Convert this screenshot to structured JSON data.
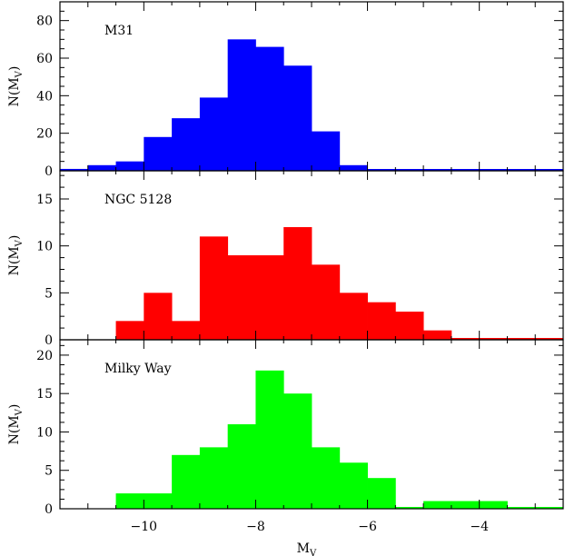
{
  "chart_data": [
    {
      "type": "bar",
      "panel_label": "M31",
      "color": "#0000ff",
      "ylabel": "N(M",
      "ylabel_sub": "V",
      "ylabel_close": ")",
      "xlim": [
        -11.5,
        -2.5
      ],
      "ylim": [
        0,
        90
      ],
      "yticks": [
        0,
        20,
        40,
        60,
        80
      ],
      "bin_width": 0.5,
      "bins": [
        {
          "x0": -11.5,
          "x1": -11.0,
          "value": 1
        },
        {
          "x0": -11.0,
          "x1": -10.5,
          "value": 3
        },
        {
          "x0": -10.5,
          "x1": -10.0,
          "value": 5
        },
        {
          "x0": -10.0,
          "x1": -9.5,
          "value": 18
        },
        {
          "x0": -9.5,
          "x1": -9.0,
          "value": 28
        },
        {
          "x0": -9.0,
          "x1": -8.5,
          "value": 39
        },
        {
          "x0": -8.5,
          "x1": -8.0,
          "value": 70
        },
        {
          "x0": -8.0,
          "x1": -7.5,
          "value": 66
        },
        {
          "x0": -7.5,
          "x1": -7.0,
          "value": 56
        },
        {
          "x0": -7.0,
          "x1": -6.5,
          "value": 21
        },
        {
          "x0": -6.5,
          "x1": -6.0,
          "value": 3
        },
        {
          "x0": -6.0,
          "x1": -5.5,
          "value": 0
        },
        {
          "x0": -5.5,
          "x1": -5.0,
          "value": 0
        },
        {
          "x0": -5.0,
          "x1": -4.5,
          "value": 0
        },
        {
          "x0": -4.5,
          "x1": -4.0,
          "value": 0
        },
        {
          "x0": -4.0,
          "x1": -3.5,
          "value": 0
        },
        {
          "x0": -3.5,
          "x1": -3.0,
          "value": 0
        },
        {
          "x0": -3.0,
          "x1": -2.5,
          "value": 0
        }
      ]
    },
    {
      "type": "bar",
      "panel_label": "NGC 5128",
      "color": "#ff0000",
      "ylabel": "N(M",
      "ylabel_sub": "V",
      "ylabel_close": ")",
      "xlim": [
        -11.5,
        -2.5
      ],
      "ylim": [
        0,
        18
      ],
      "yticks": [
        0,
        5,
        10,
        15
      ],
      "bin_width": 0.5,
      "bins": [
        {
          "x0": -10.5,
          "x1": -10.0,
          "value": 2
        },
        {
          "x0": -10.0,
          "x1": -9.5,
          "value": 5
        },
        {
          "x0": -9.5,
          "x1": -9.0,
          "value": 2
        },
        {
          "x0": -9.0,
          "x1": -8.5,
          "value": 11
        },
        {
          "x0": -8.5,
          "x1": -8.0,
          "value": 9
        },
        {
          "x0": -8.0,
          "x1": -7.5,
          "value": 9
        },
        {
          "x0": -7.5,
          "x1": -7.0,
          "value": 12
        },
        {
          "x0": -7.0,
          "x1": -6.5,
          "value": 8
        },
        {
          "x0": -6.5,
          "x1": -6.0,
          "value": 5
        },
        {
          "x0": -6.0,
          "x1": -5.5,
          "value": 4
        },
        {
          "x0": -5.5,
          "x1": -5.0,
          "value": 3
        },
        {
          "x0": -5.0,
          "x1": -4.5,
          "value": 1
        },
        {
          "x0": -4.5,
          "x1": -4.0,
          "value": 0
        },
        {
          "x0": -4.0,
          "x1": -3.5,
          "value": 0
        },
        {
          "x0": -3.5,
          "x1": -3.0,
          "value": 0
        },
        {
          "x0": -3.0,
          "x1": -2.5,
          "value": 0
        }
      ]
    },
    {
      "type": "bar",
      "panel_label": "Milky Way",
      "color": "#00ff00",
      "ylabel": "N(M",
      "ylabel_sub": "V",
      "ylabel_close": ")",
      "xlim": [
        -11.5,
        -2.5
      ],
      "ylim": [
        0,
        22
      ],
      "yticks": [
        0,
        5,
        10,
        15,
        20
      ],
      "bin_width": 0.5,
      "bins": [
        {
          "x0": -10.5,
          "x1": -10.0,
          "value": 2
        },
        {
          "x0": -10.0,
          "x1": -9.5,
          "value": 2
        },
        {
          "x0": -9.5,
          "x1": -9.0,
          "value": 7
        },
        {
          "x0": -9.0,
          "x1": -8.5,
          "value": 8
        },
        {
          "x0": -8.5,
          "x1": -8.0,
          "value": 11
        },
        {
          "x0": -8.0,
          "x1": -7.5,
          "value": 18
        },
        {
          "x0": -7.5,
          "x1": -7.0,
          "value": 15
        },
        {
          "x0": -7.0,
          "x1": -6.5,
          "value": 8
        },
        {
          "x0": -6.5,
          "x1": -6.0,
          "value": 6
        },
        {
          "x0": -6.0,
          "x1": -5.5,
          "value": 4
        },
        {
          "x0": -5.5,
          "x1": -5.0,
          "value": 0
        },
        {
          "x0": -5.0,
          "x1": -4.5,
          "value": 1
        },
        {
          "x0": -4.5,
          "x1": -4.0,
          "value": 1
        },
        {
          "x0": -4.0,
          "x1": -3.5,
          "value": 1
        },
        {
          "x0": -3.5,
          "x1": -3.0,
          "value": 0
        },
        {
          "x0": -3.0,
          "x1": -2.5,
          "value": 0
        }
      ]
    }
  ],
  "x_axis": {
    "label": "M",
    "label_sub": "V",
    "ticks": [
      -10,
      -8,
      -6,
      -4
    ],
    "tick_labels": [
      "−10",
      "−8",
      "−6",
      "−4"
    ]
  }
}
